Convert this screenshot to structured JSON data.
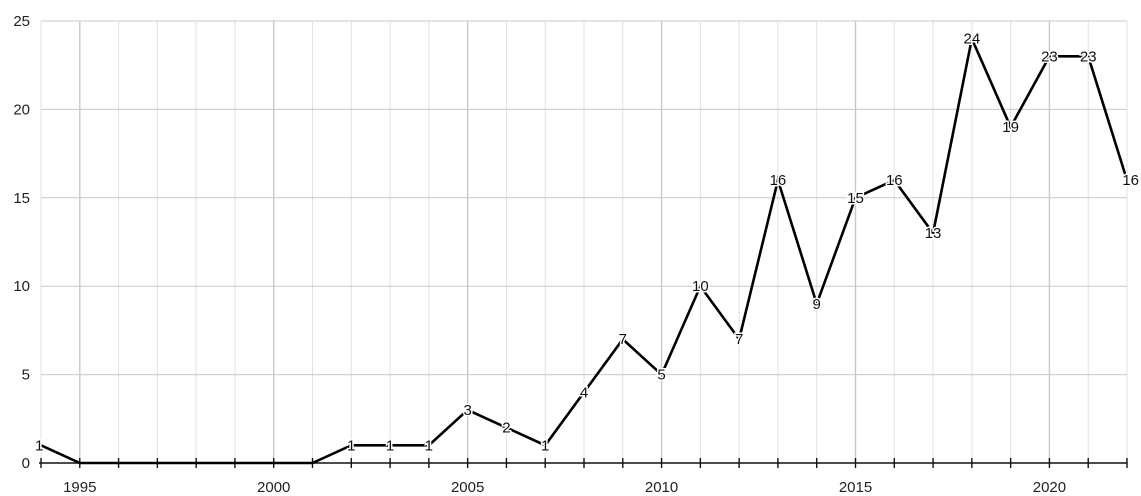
{
  "chart_data": {
    "type": "line",
    "title": "",
    "xlabel": "",
    "ylabel": "",
    "x": [
      1994,
      1995,
      1996,
      1997,
      1998,
      1999,
      2000,
      2001,
      2002,
      2003,
      2004,
      2005,
      2006,
      2007,
      2008,
      2009,
      2010,
      2011,
      2012,
      2013,
      2014,
      2015,
      2016,
      2017,
      2018,
      2019,
      2020,
      2021,
      2022
    ],
    "series": [
      {
        "values": [
          1,
          0,
          0,
          0,
          0,
          0,
          0,
          0,
          1,
          1,
          1,
          3,
          2,
          1,
          4,
          7,
          5,
          10,
          7,
          16,
          9,
          15,
          16,
          13,
          24,
          19,
          23,
          23,
          16
        ]
      }
    ],
    "data_labels": [
      {
        "x": 1994,
        "y": 1,
        "text": "1"
      },
      {
        "x": 2002,
        "y": 1,
        "text": "1"
      },
      {
        "x": 2003,
        "y": 1,
        "text": "1"
      },
      {
        "x": 2004,
        "y": 1,
        "text": "1"
      },
      {
        "x": 2005,
        "y": 3,
        "text": "3"
      },
      {
        "x": 2006,
        "y": 2,
        "text": "2"
      },
      {
        "x": 2007,
        "y": 1,
        "text": "1"
      },
      {
        "x": 2008,
        "y": 4,
        "text": "4"
      },
      {
        "x": 2009,
        "y": 7,
        "text": "7"
      },
      {
        "x": 2010,
        "y": 5,
        "text": "5"
      },
      {
        "x": 2011,
        "y": 10,
        "text": "10"
      },
      {
        "x": 2012,
        "y": 7,
        "text": "7"
      },
      {
        "x": 2013,
        "y": 16,
        "text": "16"
      },
      {
        "x": 2014,
        "y": 9,
        "text": "9"
      },
      {
        "x": 2015,
        "y": 15,
        "text": "15"
      },
      {
        "x": 2016,
        "y": 16,
        "text": "16"
      },
      {
        "x": 2017,
        "y": 13,
        "text": "13"
      },
      {
        "x": 2018,
        "y": 24,
        "text": "24"
      },
      {
        "x": 2019,
        "y": 19,
        "text": "19"
      },
      {
        "x": 2020,
        "y": 23,
        "text": "23"
      },
      {
        "x": 2021,
        "y": 23,
        "text": "23"
      },
      {
        "x": 2022,
        "y": 16,
        "text": "16"
      }
    ],
    "xlim": [
      1994,
      2022
    ],
    "ylim": [
      0,
      25
    ],
    "x_ticks": [
      {
        "value": 1995,
        "label": "1995"
      },
      {
        "value": 2000,
        "label": "2000"
      },
      {
        "value": 2005,
        "label": "2005"
      },
      {
        "value": 2010,
        "label": "2010"
      },
      {
        "value": 2015,
        "label": "2015"
      },
      {
        "value": 2020,
        "label": "2020"
      }
    ],
    "y_ticks": [
      {
        "value": 0,
        "label": "0"
      },
      {
        "value": 5,
        "label": "5"
      },
      {
        "value": 10,
        "label": "10"
      },
      {
        "value": 15,
        "label": "15"
      },
      {
        "value": 20,
        "label": "20"
      },
      {
        "value": 25,
        "label": "25"
      }
    ],
    "grid": true,
    "legend": false,
    "colors": {
      "line": "#000000",
      "grid_major": "#c8c8c8",
      "grid_minor": "#e2e2e2",
      "axis": "#111111"
    }
  }
}
